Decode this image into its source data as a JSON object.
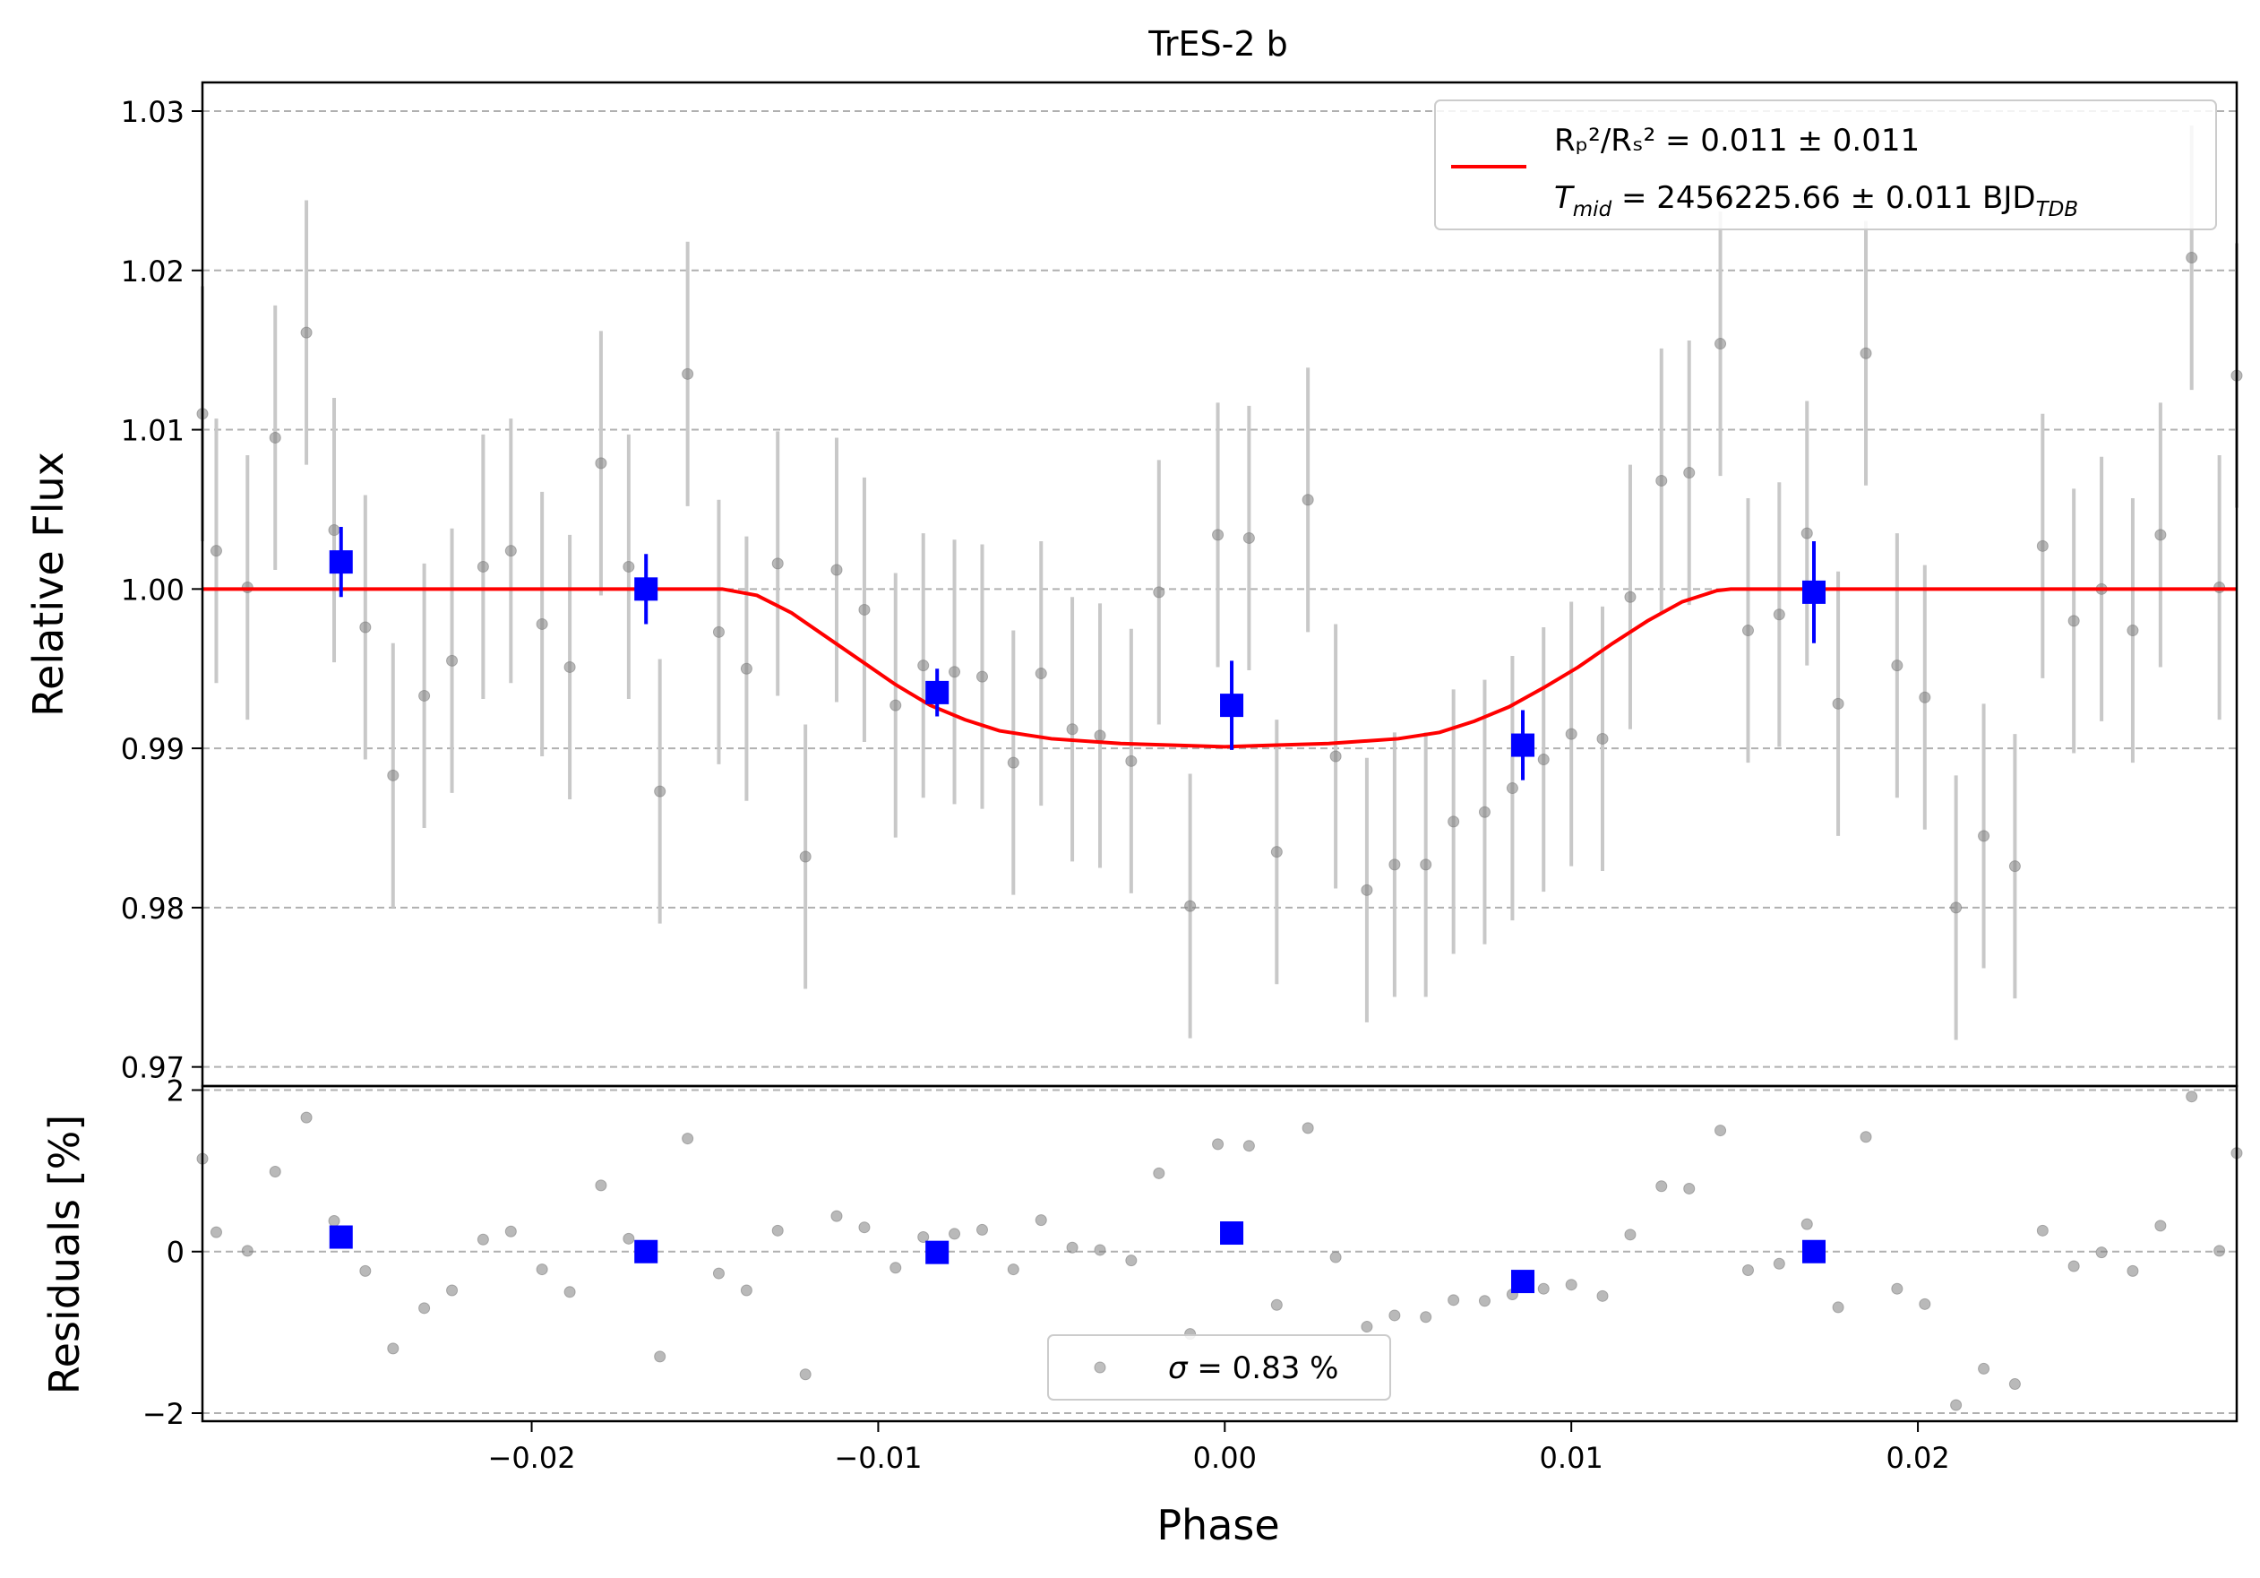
{
  "chart_data": {
    "type": "scatter",
    "title": "TrES-2 b",
    "xlabel": "Phase",
    "colors": {
      "data": "#808080",
      "binned": "#0000ff",
      "model": "#ff0000",
      "errorbar": "#c8c8c8",
      "grid": "#b0b0b0"
    },
    "top_panel": {
      "ylabel": "Relative Flux",
      "xlim": [
        -0.0295,
        0.0292
      ],
      "ylim": [
        0.9688,
        1.0318
      ],
      "xticks": [
        {
          "v": -0.02,
          "label": "−0.02"
        },
        {
          "v": -0.01,
          "label": "−0.01"
        },
        {
          "v": 0.0,
          "label": "0.00"
        },
        {
          "v": 0.01,
          "label": "0.01"
        },
        {
          "v": 0.02,
          "label": "0.02"
        }
      ],
      "yticks": [
        {
          "v": 0.97,
          "label": "0.97"
        },
        {
          "v": 0.98,
          "label": "0.98"
        },
        {
          "v": 0.99,
          "label": "0.99"
        },
        {
          "v": 1.0,
          "label": "1.00"
        },
        {
          "v": 1.01,
          "label": "1.01"
        },
        {
          "v": 1.02,
          "label": "1.02"
        },
        {
          "v": 1.03,
          "label": "1.03"
        }
      ],
      "grid": "horizontal dashed",
      "legend": {
        "placement": "top-right",
        "line1": "Rₚ²/Rₛ² = 0.011 ± 0.011",
        "line2_main": "T",
        "line2_sub": "mid",
        "line2_rest": " = 2456225.66 ± 0.011 BJD",
        "line2_sub2": "TDB"
      },
      "series": [
        {
          "name": "data",
          "points": [
            {
              "x": -0.0295,
              "y": 1.011,
              "err": 0.008
            },
            {
              "x": -0.0291,
              "y": 1.0024,
              "err": 0.0083
            },
            {
              "x": -0.0282,
              "y": 1.0001,
              "err": 0.0083
            },
            {
              "x": -0.0274,
              "y": 1.0095,
              "err": 0.0083
            },
            {
              "x": -0.0265,
              "y": 1.0161,
              "err": 0.0083
            },
            {
              "x": -0.0257,
              "y": 1.0037,
              "err": 0.0083
            },
            {
              "x": -0.0248,
              "y": 0.9976,
              "err": 0.0083
            },
            {
              "x": -0.024,
              "y": 0.9883,
              "err": 0.0083
            },
            {
              "x": -0.0231,
              "y": 0.9933,
              "err": 0.0083
            },
            {
              "x": -0.0223,
              "y": 0.9955,
              "err": 0.0083
            },
            {
              "x": -0.0214,
              "y": 1.0014,
              "err": 0.0083
            },
            {
              "x": -0.0206,
              "y": 1.0024,
              "err": 0.0083
            },
            {
              "x": -0.0197,
              "y": 0.9978,
              "err": 0.0083
            },
            {
              "x": -0.0189,
              "y": 0.9951,
              "err": 0.0083
            },
            {
              "x": -0.018,
              "y": 1.0079,
              "err": 0.0083
            },
            {
              "x": -0.0172,
              "y": 1.0014,
              "err": 0.0083
            },
            {
              "x": -0.0163,
              "y": 0.9873,
              "err": 0.0083
            },
            {
              "x": -0.0155,
              "y": 1.0135,
              "err": 0.0083
            },
            {
              "x": -0.0146,
              "y": 0.9973,
              "err": 0.0083
            },
            {
              "x": -0.0138,
              "y": 0.995,
              "err": 0.0083
            },
            {
              "x": -0.0129,
              "y": 1.0016,
              "err": 0.0083
            },
            {
              "x": -0.0121,
              "y": 0.9832,
              "err": 0.0083
            },
            {
              "x": -0.0112,
              "y": 1.0012,
              "err": 0.0083
            },
            {
              "x": -0.0104,
              "y": 0.9987,
              "err": 0.0083
            },
            {
              "x": -0.0095,
              "y": 0.9927,
              "err": 0.0083
            },
            {
              "x": -0.0087,
              "y": 0.9952,
              "err": 0.0083
            },
            {
              "x": -0.0078,
              "y": 0.9948,
              "err": 0.0083
            },
            {
              "x": -0.007,
              "y": 0.9945,
              "err": 0.0083
            },
            {
              "x": -0.0061,
              "y": 0.9891,
              "err": 0.0083
            },
            {
              "x": -0.0053,
              "y": 0.9947,
              "err": 0.0083
            },
            {
              "x": -0.0044,
              "y": 0.9912,
              "err": 0.0083
            },
            {
              "x": -0.0036,
              "y": 0.9908,
              "err": 0.0083
            },
            {
              "x": -0.0027,
              "y": 0.9892,
              "err": 0.0083
            },
            {
              "x": -0.0019,
              "y": 0.9998,
              "err": 0.0083
            },
            {
              "x": -0.001,
              "y": 0.9801,
              "err": 0.0083
            },
            {
              "x": -0.0002,
              "y": 1.0034,
              "err": 0.0083
            },
            {
              "x": 0.0007,
              "y": 1.0032,
              "err": 0.0083
            },
            {
              "x": 0.0015,
              "y": 0.9835,
              "err": 0.0083
            },
            {
              "x": 0.0024,
              "y": 1.0056,
              "err": 0.0083
            },
            {
              "x": 0.0032,
              "y": 0.9895,
              "err": 0.0083
            },
            {
              "x": 0.0041,
              "y": 0.9811,
              "err": 0.0083
            },
            {
              "x": 0.0049,
              "y": 0.9827,
              "err": 0.0083
            },
            {
              "x": 0.0058,
              "y": 0.9827,
              "err": 0.0083
            },
            {
              "x": 0.0066,
              "y": 0.9854,
              "err": 0.0083
            },
            {
              "x": 0.0075,
              "y": 0.986,
              "err": 0.0083
            },
            {
              "x": 0.0083,
              "y": 0.9875,
              "err": 0.0083
            },
            {
              "x": 0.0092,
              "y": 0.9893,
              "err": 0.0083
            },
            {
              "x": 0.01,
              "y": 0.9909,
              "err": 0.0083
            },
            {
              "x": 0.0109,
              "y": 0.9906,
              "err": 0.0083
            },
            {
              "x": 0.0117,
              "y": 0.9995,
              "err": 0.0083
            },
            {
              "x": 0.0126,
              "y": 1.0068,
              "err": 0.0083
            },
            {
              "x": 0.0134,
              "y": 1.0073,
              "err": 0.0083
            },
            {
              "x": 0.0143,
              "y": 1.0154,
              "err": 0.0083
            },
            {
              "x": 0.0151,
              "y": 0.9974,
              "err": 0.0083
            },
            {
              "x": 0.016,
              "y": 0.9984,
              "err": 0.0083
            },
            {
              "x": 0.0168,
              "y": 1.0035,
              "err": 0.0083
            },
            {
              "x": 0.0177,
              "y": 0.9928,
              "err": 0.0083
            },
            {
              "x": 0.0185,
              "y": 1.0148,
              "err": 0.0083
            },
            {
              "x": 0.0194,
              "y": 0.9952,
              "err": 0.0083
            },
            {
              "x": 0.0202,
              "y": 0.9932,
              "err": 0.0083
            },
            {
              "x": 0.0211,
              "y": 0.98,
              "err": 0.0083
            },
            {
              "x": 0.0219,
              "y": 0.9845,
              "err": 0.0083
            },
            {
              "x": 0.0228,
              "y": 0.9826,
              "err": 0.0083
            },
            {
              "x": 0.0236,
              "y": 1.0027,
              "err": 0.0083
            },
            {
              "x": 0.0245,
              "y": 0.998,
              "err": 0.0083
            },
            {
              "x": 0.0253,
              "y": 1.0,
              "err": 0.0083
            },
            {
              "x": 0.0262,
              "y": 0.9974,
              "err": 0.0083
            },
            {
              "x": 0.027,
              "y": 1.0034,
              "err": 0.0083
            },
            {
              "x": 0.0279,
              "y": 1.0208,
              "err": 0.0083
            },
            {
              "x": 0.0287,
              "y": 1.0001,
              "err": 0.0083
            },
            {
              "x": 0.0292,
              "y": 1.0134,
              "err": 0.0083
            }
          ]
        },
        {
          "name": "binned",
          "points": [
            {
              "x": -0.0255,
              "y": 1.0017,
              "err": 0.0022
            },
            {
              "x": -0.0167,
              "y": 1.0,
              "err": 0.0022
            },
            {
              "x": -0.0083,
              "y": 0.9935,
              "err": 0.0015
            },
            {
              "x": 0.0002,
              "y": 0.9927,
              "err": 0.0028
            },
            {
              "x": 0.0086,
              "y": 0.9902,
              "err": 0.0022
            },
            {
              "x": 0.017,
              "y": 0.9998,
              "err": 0.0032
            }
          ]
        },
        {
          "name": "model",
          "points": [
            {
              "x": -0.0295,
              "y": 1.0
            },
            {
              "x": -0.0145,
              "y": 1.0
            },
            {
              "x": -0.0135,
              "y": 0.9996
            },
            {
              "x": -0.0125,
              "y": 0.9985
            },
            {
              "x": -0.0115,
              "y": 0.997
            },
            {
              "x": -0.0105,
              "y": 0.9955
            },
            {
              "x": -0.0095,
              "y": 0.994
            },
            {
              "x": -0.0085,
              "y": 0.9927
            },
            {
              "x": -0.0075,
              "y": 0.9918
            },
            {
              "x": -0.0065,
              "y": 0.9911
            },
            {
              "x": -0.005,
              "y": 0.9906
            },
            {
              "x": -0.003,
              "y": 0.9903
            },
            {
              "x": 0.0,
              "y": 0.9901
            },
            {
              "x": 0.003,
              "y": 0.9903
            },
            {
              "x": 0.005,
              "y": 0.9906
            },
            {
              "x": 0.0062,
              "y": 0.991
            },
            {
              "x": 0.0072,
              "y": 0.9917
            },
            {
              "x": 0.0082,
              "y": 0.9926
            },
            {
              "x": 0.0092,
              "y": 0.9938
            },
            {
              "x": 0.0102,
              "y": 0.9951
            },
            {
              "x": 0.0112,
              "y": 0.9966
            },
            {
              "x": 0.0122,
              "y": 0.998
            },
            {
              "x": 0.0132,
              "y": 0.9992
            },
            {
              "x": 0.0142,
              "y": 0.9999
            },
            {
              "x": 0.0146,
              "y": 1.0
            },
            {
              "x": 0.0292,
              "y": 1.0
            }
          ]
        }
      ]
    },
    "bottom_panel": {
      "ylabel": "Residuals [%]",
      "ylim": [
        -2.1,
        2.05
      ],
      "yticks": [
        {
          "v": -2,
          "label": "−2"
        },
        {
          "v": 0,
          "label": "0"
        },
        {
          "v": 2,
          "label": "2"
        }
      ],
      "legend": {
        "placement": "bottom-center",
        "label_sym": "σ",
        "label_rest": " = 0.83 %"
      },
      "series": [
        {
          "name": "residuals",
          "points": [
            {
              "x": -0.0295,
              "y": 1.15
            },
            {
              "x": -0.0291,
              "y": 0.24
            },
            {
              "x": -0.0282,
              "y": 0.01
            },
            {
              "x": -0.0274,
              "y": 0.99
            },
            {
              "x": -0.0265,
              "y": 1.66
            },
            {
              "x": -0.0257,
              "y": 0.38
            },
            {
              "x": -0.0248,
              "y": -0.24
            },
            {
              "x": -0.024,
              "y": -1.2
            },
            {
              "x": -0.0231,
              "y": -0.7
            },
            {
              "x": -0.0223,
              "y": -0.48
            },
            {
              "x": -0.0214,
              "y": 0.15
            },
            {
              "x": -0.0206,
              "y": 0.25
            },
            {
              "x": -0.0197,
              "y": -0.22
            },
            {
              "x": -0.0189,
              "y": -0.5
            },
            {
              "x": -0.018,
              "y": 0.82
            },
            {
              "x": -0.0172,
              "y": 0.16
            },
            {
              "x": -0.0163,
              "y": -1.3
            },
            {
              "x": -0.0155,
              "y": 1.4
            },
            {
              "x": -0.0146,
              "y": -0.27
            },
            {
              "x": -0.0138,
              "y": -0.48
            },
            {
              "x": -0.0129,
              "y": 0.26
            },
            {
              "x": -0.0121,
              "y": -1.52
            },
            {
              "x": -0.0112,
              "y": 0.44
            },
            {
              "x": -0.0104,
              "y": 0.3
            },
            {
              "x": -0.0095,
              "y": -0.2
            },
            {
              "x": -0.0087,
              "y": 0.18
            },
            {
              "x": -0.0078,
              "y": 0.22
            },
            {
              "x": -0.007,
              "y": 0.27
            },
            {
              "x": -0.0061,
              "y": -0.22
            },
            {
              "x": -0.0053,
              "y": 0.39
            },
            {
              "x": -0.0044,
              "y": 0.05
            },
            {
              "x": -0.0036,
              "y": 0.02
            },
            {
              "x": -0.0027,
              "y": -0.11
            },
            {
              "x": -0.0019,
              "y": 0.97
            },
            {
              "x": -0.001,
              "y": -1.02
            },
            {
              "x": -0.0002,
              "y": 1.33
            },
            {
              "x": 0.0007,
              "y": 1.31
            },
            {
              "x": 0.0015,
              "y": -0.66
            },
            {
              "x": 0.0024,
              "y": 1.53
            },
            {
              "x": 0.0032,
              "y": -0.07
            },
            {
              "x": 0.0041,
              "y": -0.93
            },
            {
              "x": 0.0049,
              "y": -0.79
            },
            {
              "x": 0.0058,
              "y": -0.81
            },
            {
              "x": 0.0066,
              "y": -0.6
            },
            {
              "x": 0.0075,
              "y": -0.61
            },
            {
              "x": 0.0083,
              "y": -0.53
            },
            {
              "x": 0.0092,
              "y": -0.46
            },
            {
              "x": 0.01,
              "y": -0.41
            },
            {
              "x": 0.0109,
              "y": -0.55
            },
            {
              "x": 0.0117,
              "y": 0.21
            },
            {
              "x": 0.0126,
              "y": 0.81
            },
            {
              "x": 0.0134,
              "y": 0.78
            },
            {
              "x": 0.0143,
              "y": 1.5
            },
            {
              "x": 0.0151,
              "y": -0.23
            },
            {
              "x": 0.016,
              "y": -0.15
            },
            {
              "x": 0.0168,
              "y": 0.34
            },
            {
              "x": 0.0177,
              "y": -0.69
            },
            {
              "x": 0.0185,
              "y": 1.42
            },
            {
              "x": 0.0194,
              "y": -0.46
            },
            {
              "x": 0.0202,
              "y": -0.65
            },
            {
              "x": 0.0211,
              "y": -1.9
            },
            {
              "x": 0.0219,
              "y": -1.45
            },
            {
              "x": 0.0228,
              "y": -1.64
            },
            {
              "x": 0.0236,
              "y": 0.26
            },
            {
              "x": 0.0245,
              "y": -0.18
            },
            {
              "x": 0.0253,
              "y": -0.01
            },
            {
              "x": 0.0262,
              "y": -0.24
            },
            {
              "x": 0.027,
              "y": 0.32
            },
            {
              "x": 0.0279,
              "y": 1.92
            },
            {
              "x": 0.0287,
              "y": 0.01
            },
            {
              "x": 0.0292,
              "y": 1.22
            }
          ]
        },
        {
          "name": "binned-residuals",
          "points": [
            {
              "x": -0.0255,
              "y": 0.18
            },
            {
              "x": -0.0167,
              "y": 0.0
            },
            {
              "x": -0.0083,
              "y": -0.01
            },
            {
              "x": 0.0002,
              "y": 0.23
            },
            {
              "x": 0.0086,
              "y": -0.37
            },
            {
              "x": 0.017,
              "y": 0.0
            }
          ]
        }
      ]
    }
  }
}
